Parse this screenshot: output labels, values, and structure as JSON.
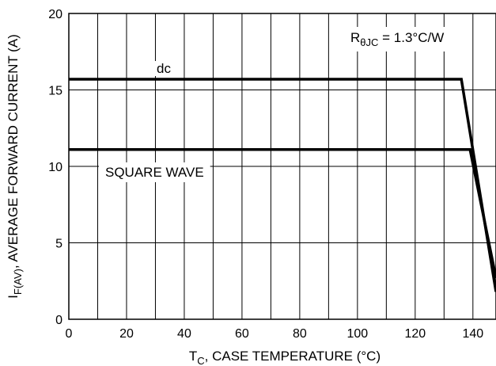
{
  "chart_data": {
    "type": "line",
    "title": "",
    "xlabel": {
      "main": "T",
      "sub": "C",
      "rest": ", CASE TEMPERATURE (°C)"
    },
    "ylabel": {
      "main": "I",
      "sub": "F(AV)",
      "rest": ", AVERAGE FORWARD CURRENT (A)"
    },
    "xlim": [
      0,
      148
    ],
    "ylim": [
      0,
      20
    ],
    "xticks": [
      0,
      20,
      40,
      60,
      80,
      100,
      120,
      140
    ],
    "xgrid": [
      0,
      10,
      20,
      30,
      40,
      50,
      60,
      70,
      80,
      90,
      100,
      110,
      120,
      130,
      140
    ],
    "yticks": [
      0,
      5,
      10,
      15,
      20
    ],
    "grid": true,
    "series": [
      {
        "name": "dc",
        "x": [
          0,
          136,
          148
        ],
        "y": [
          15.7,
          15.7,
          1.8
        ]
      },
      {
        "name": "SQUARE WAVE",
        "x": [
          0,
          139,
          148
        ],
        "y": [
          11.1,
          11.1,
          2.7
        ]
      }
    ],
    "annotation": {
      "main": "R",
      "sub": "θJC",
      "rest": " = 1.3°C/W"
    }
  }
}
